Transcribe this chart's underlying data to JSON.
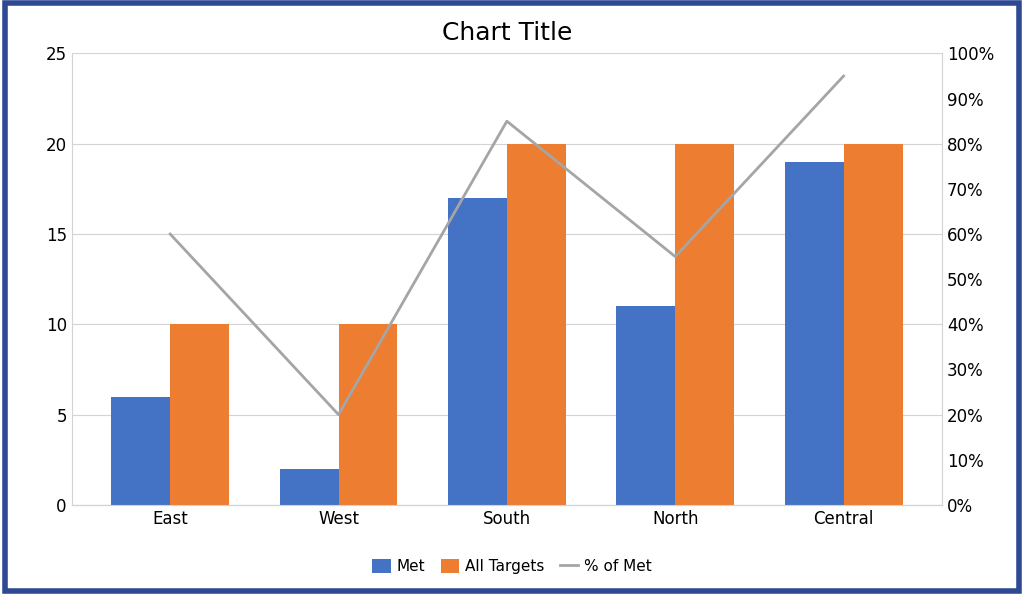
{
  "categories": [
    "East",
    "West",
    "South",
    "North",
    "Central"
  ],
  "met": [
    6,
    2,
    17,
    11,
    19
  ],
  "all_targets": [
    10,
    10,
    20,
    20,
    20
  ],
  "pct_of_met": [
    0.6,
    0.2,
    0.85,
    0.55,
    0.95
  ],
  "bar_color_met": "#4472C4",
  "bar_color_targets": "#ED7D31",
  "line_color": "#A5A5A5",
  "title": "Chart Title",
  "title_fontsize": 18,
  "ylim_left": [
    0,
    25
  ],
  "ylim_right": [
    0,
    1.0
  ],
  "yticks_left": [
    0,
    5,
    10,
    15,
    20,
    25
  ],
  "yticks_right": [
    0.0,
    0.1,
    0.2,
    0.3,
    0.4,
    0.5,
    0.6,
    0.7,
    0.8,
    0.9,
    1.0
  ],
  "legend_labels": [
    "Met",
    "All Targets",
    "% of Met"
  ],
  "background_color": "#FFFFFF",
  "border_color": "#2E4893",
  "bar_width": 0.35,
  "tick_fontsize": 12,
  "legend_fontsize": 11,
  "grid_color": "#D3D3D3",
  "spine_color": "#D3D3D3"
}
